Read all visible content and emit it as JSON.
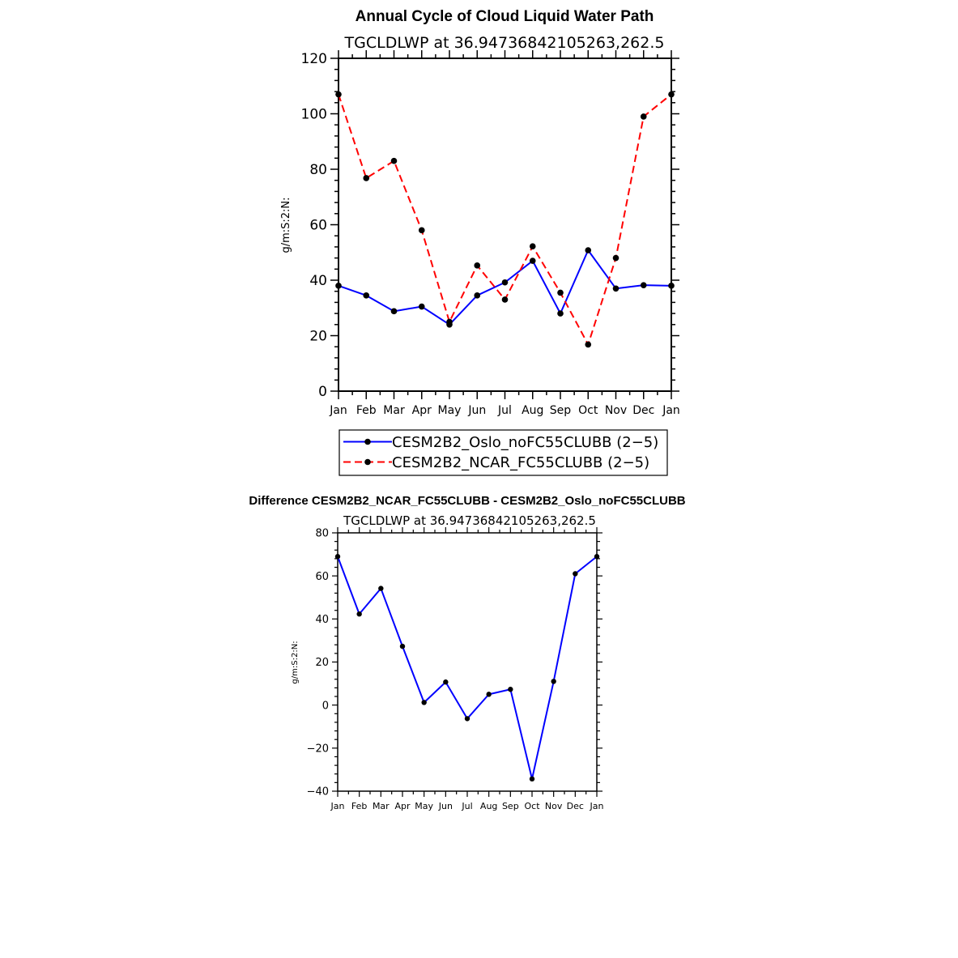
{
  "chart_data": [
    {
      "type": "line",
      "title": "Annual Cycle of Cloud Liquid Water Path",
      "subtitle": "TGCLDLWP  at  36.94736842105263,262.5",
      "ylabel": "g/m:S:2:N:",
      "ylim": [
        0,
        120
      ],
      "yticks": [
        0,
        20,
        40,
        60,
        80,
        100,
        120
      ],
      "categories": [
        "Jan",
        "Feb",
        "Mar",
        "Apr",
        "May",
        "Jun",
        "Jul",
        "Aug",
        "Sep",
        "Oct",
        "Nov",
        "Dec",
        "Jan"
      ],
      "series": [
        {
          "name": "CESM2B2_Oslo_noFC55CLUBB (2−5)",
          "color": "#0000ff",
          "dash": "solid",
          "values": [
            38,
            34.5,
            28.8,
            30.5,
            24,
            34.5,
            39.2,
            47,
            28,
            50.8,
            37,
            38.2,
            38
          ]
        },
        {
          "name": "CESM2B2_NCAR_FC55CLUBB (2−5)",
          "color": "#ff0000",
          "dash": "dashed",
          "values": [
            107,
            76.8,
            83,
            58,
            25,
            45.3,
            33,
            52.2,
            35.5,
            16.8,
            48,
            99,
            107
          ]
        }
      ]
    },
    {
      "type": "line",
      "title": "Difference CESM2B2_NCAR_FC55CLUBB - CESM2B2_Oslo_noFC55CLUBB",
      "subtitle": "TGCLDLWP  at  36.94736842105263,262.5",
      "ylabel": "g/m:S:2:N:",
      "ylim": [
        -40,
        80
      ],
      "yticks": [
        -40,
        -20,
        0,
        20,
        40,
        60,
        80
      ],
      "ytick_labels": [
        "−40",
        "−20",
        "0",
        "20",
        "40",
        "60",
        "80"
      ],
      "categories": [
        "Jan",
        "Feb",
        "Mar",
        "Apr",
        "May",
        "Jun",
        "Jul",
        "Aug",
        "Sep",
        "Oct",
        "Nov",
        "Dec",
        "Jan"
      ],
      "series": [
        {
          "name": "difference",
          "color": "#0000ff",
          "dash": "solid",
          "values": [
            69,
            42.3,
            54.2,
            27.3,
            1.2,
            10.7,
            -6.3,
            5,
            7.3,
            -34.3,
            11,
            61,
            69
          ]
        }
      ]
    }
  ]
}
